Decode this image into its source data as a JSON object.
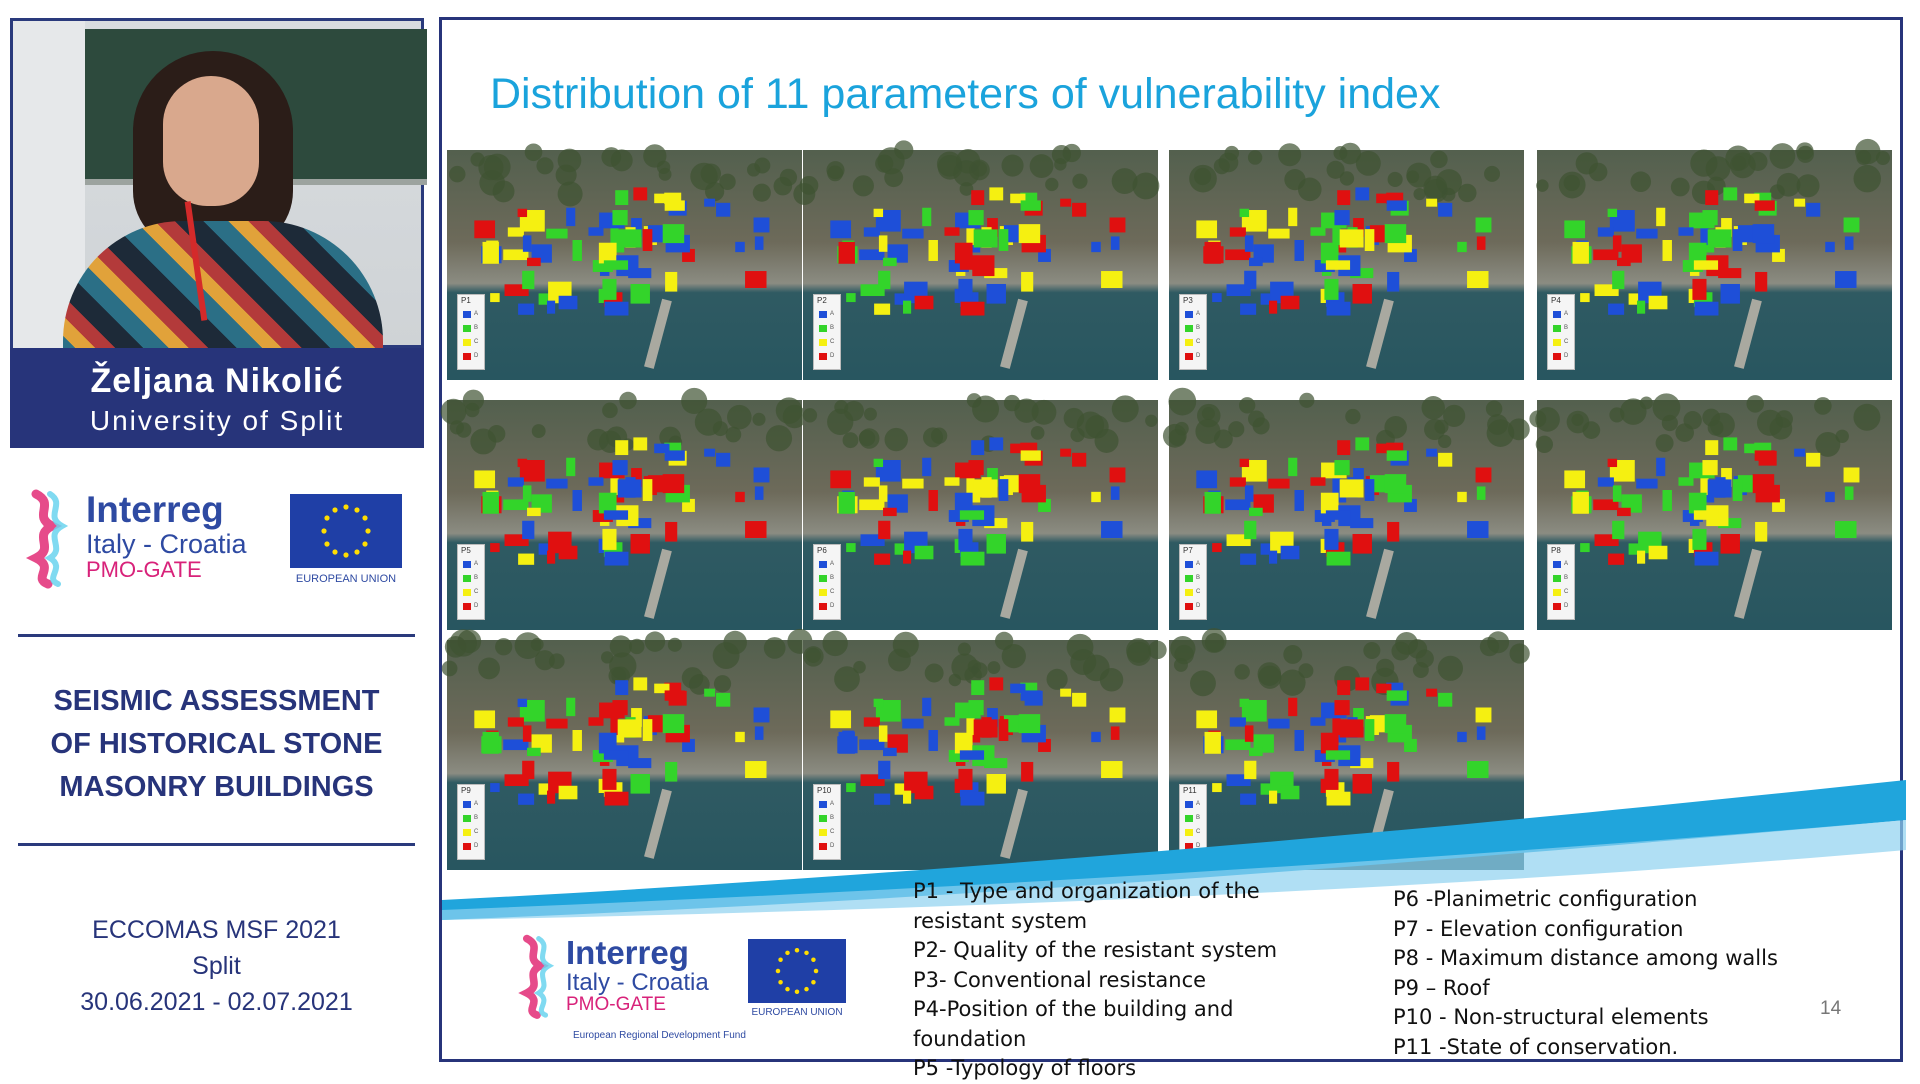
{
  "speaker": {
    "name": "Željana Nikolić",
    "affiliation": "University of Split"
  },
  "sidebar_logo": {
    "interreg": "Interreg",
    "region": "Italy - Croatia",
    "project": "PMO-GATE",
    "eu_caption": "EUROPEAN UNION"
  },
  "conference": {
    "title_lines": [
      "SEISMIC ASSESSMENT",
      "OF HISTORICAL STONE",
      "MASONRY BUILDINGS"
    ],
    "info_lines": [
      "ECCOMAS MSF 2021",
      "Split",
      "30.06.2021 - 02.07.2021"
    ]
  },
  "slide": {
    "title": "Distribution of 11 parameters of vulnerability index",
    "number": "14",
    "maps": [
      {
        "label": "P1"
      },
      {
        "label": "P2"
      },
      {
        "label": "P3"
      },
      {
        "label": "P4"
      },
      {
        "label": "P5"
      },
      {
        "label": "P6"
      },
      {
        "label": "P7"
      },
      {
        "label": "P8"
      },
      {
        "label": "P9"
      },
      {
        "label": "P10"
      },
      {
        "label": "P11"
      }
    ],
    "legend_classes": [
      "A",
      "B",
      "C",
      "D"
    ],
    "class_colors": {
      "A": "#1e4fd8",
      "B": "#33d42a",
      "C": "#f5f011",
      "D": "#e01010"
    },
    "parameters_left": [
      "P1 - Type and organization of the resistant system",
      "P2- Quality of the resistant system",
      "P3- Conventional resistance",
      "P4-Position of the building and foundation",
      "P5 -Typology of floors"
    ],
    "parameters_right": [
      "P6 -Planimetric configuration",
      "P7 - Elevation configuration",
      "P8 - Maximum distance among walls",
      "P9 – Roof",
      "P10 - Non-structural elements",
      "P11 -State of conservation."
    ],
    "footer_logo": {
      "interreg": "Interreg",
      "region": "Italy - Croatia",
      "project": "PMO-GATE",
      "eu_caption": "EUROPEAN UNION",
      "fund": "European Regional Development Fund"
    }
  }
}
